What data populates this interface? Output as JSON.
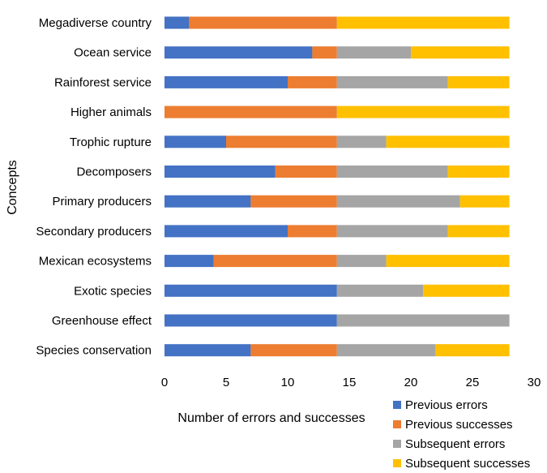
{
  "chart_data": {
    "type": "bar",
    "orientation": "horizontal",
    "stacked": true,
    "categories": [
      "Megadiverse country",
      "Ocean service",
      "Rainforest service",
      "Higher animals",
      "Trophic rupture",
      "Decomposers",
      "Primary producers",
      "Secondary producers",
      "Mexican ecosystems",
      "Exotic species",
      "Greenhouse effect",
      "Species conservation"
    ],
    "series": [
      {
        "name": "Previous errors",
        "color": "#4472C4",
        "values": [
          2,
          12,
          10,
          0,
          5,
          9,
          7,
          10,
          4,
          14,
          14,
          7
        ]
      },
      {
        "name": "Previous successes",
        "color": "#ED7D31",
        "values": [
          12,
          2,
          4,
          14,
          9,
          5,
          7,
          4,
          10,
          0,
          0,
          7
        ]
      },
      {
        "name": "Subsequent errors",
        "color": "#A5A5A5",
        "values": [
          0,
          6,
          9,
          0,
          4,
          9,
          10,
          9,
          4,
          7,
          14,
          8
        ]
      },
      {
        "name": "Subsequent successes",
        "color": "#FFC000",
        "values": [
          14,
          8,
          5,
          14,
          10,
          5,
          4,
          5,
          10,
          7,
          0,
          6
        ]
      }
    ],
    "xlim": [
      0,
      30
    ],
    "x_ticks": [
      "0",
      "5",
      "10",
      "15",
      "20",
      "25",
      "30"
    ],
    "xlabel": "Number of errors and successes",
    "ylabel": "Concepts",
    "title": "",
    "grid": false,
    "legend_position": "bottom-right"
  }
}
